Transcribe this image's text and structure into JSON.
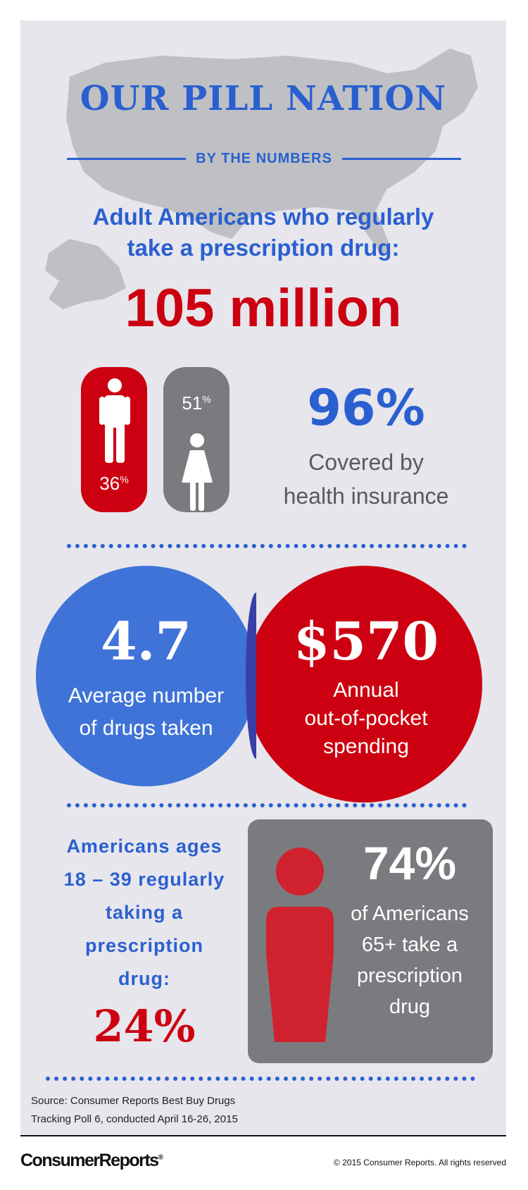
{
  "header": {
    "title": "OUR PILL NATION",
    "subtitle": "BY THE NUMBERS",
    "headline_line1": "Adult Americans who regularly",
    "headline_line2": "take a prescription drug:",
    "headline_value": "105 million"
  },
  "gender": {
    "men_percent": "36",
    "women_percent": "51",
    "percent_sign": "%"
  },
  "insurance": {
    "value": "96%",
    "label_line1": "Covered by",
    "label_line2": "health insurance"
  },
  "drugs": {
    "value": "4.7",
    "label_line1": "Average number",
    "label_line2": "of drugs taken"
  },
  "spending": {
    "value": "$570",
    "label_line1": "Annual",
    "label_line2": "out-of-pocket",
    "label_line3": "spending"
  },
  "young_adults": {
    "line1": "Americans ages",
    "line2": "18 – 39 regularly",
    "line3": "taking a",
    "line4": "prescription",
    "line5": "drug:",
    "value": "24%"
  },
  "seniors": {
    "value": "74%",
    "line1": "of Americans",
    "line2": "65+ take a",
    "line3": "prescription",
    "line4": "drug"
  },
  "source": {
    "line1": "Source: Consumer Reports Best Buy Drugs",
    "line2": "Tracking Poll 6, conducted April 16-26, 2015"
  },
  "footer": {
    "logo": "ConsumerReports",
    "registered": "®",
    "copyright": "© 2015 Consumer Reports. All rights reserved"
  },
  "colors": {
    "blue": "#2a5fd0",
    "red": "#cc0010",
    "gray": "#7a7b7f",
    "panel": "#e6e6ec"
  }
}
